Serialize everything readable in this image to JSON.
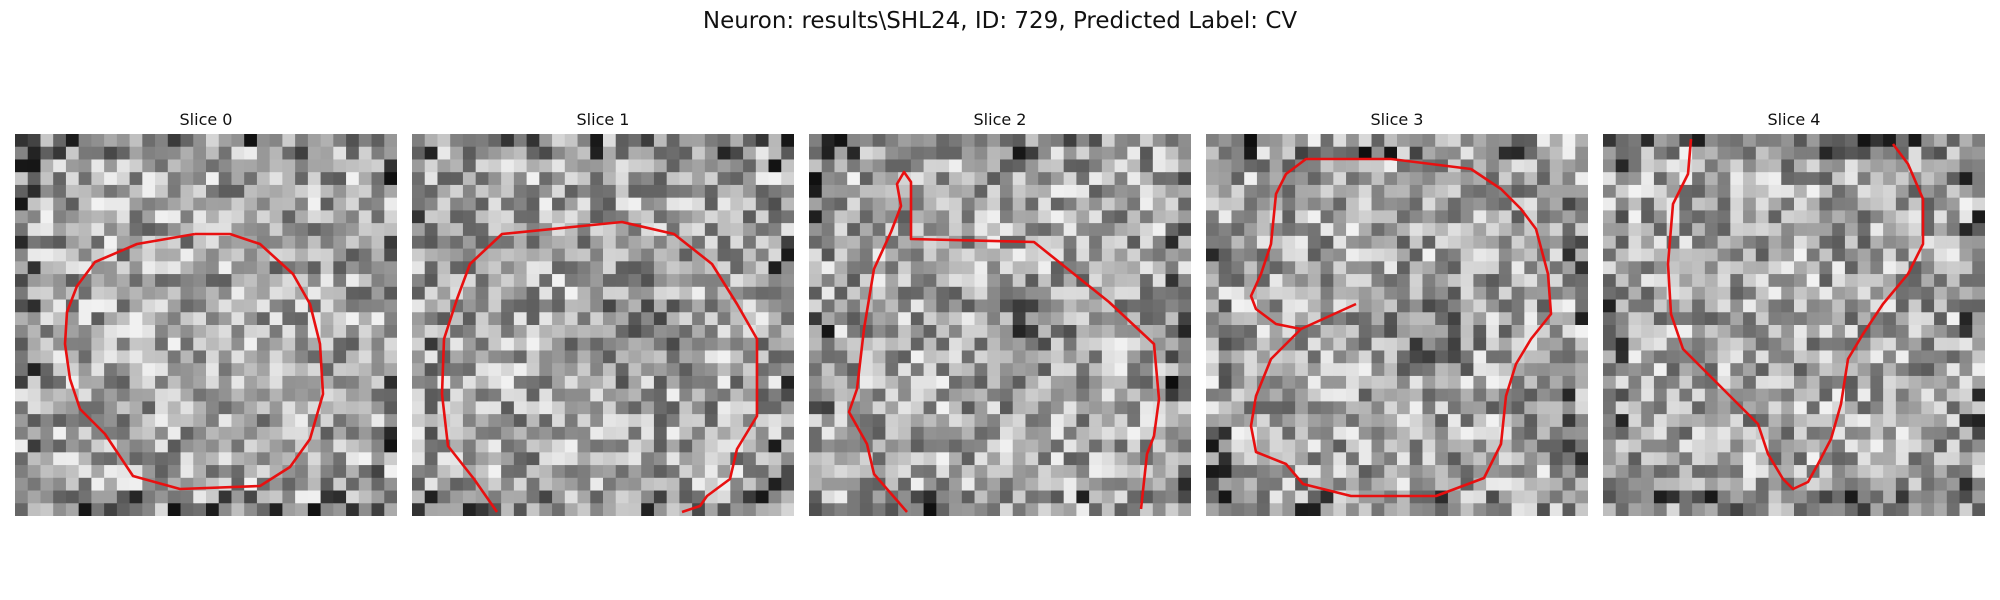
{
  "figure": {
    "title": "Neuron: results\\SHL24, ID: 729, Predicted Label: CV",
    "contour_color": "#e81010"
  },
  "panels": [
    {
      "title": "Slice 0",
      "seed": 11,
      "dark_center": false
    },
    {
      "title": "Slice 1",
      "seed": 23,
      "dark_center": true
    },
    {
      "title": "Slice 2",
      "seed": 37,
      "dark_center": true
    },
    {
      "title": "Slice 3",
      "seed": 41,
      "dark_center": true
    },
    {
      "title": "Slice 4",
      "seed": 53,
      "dark_center": false
    }
  ]
}
